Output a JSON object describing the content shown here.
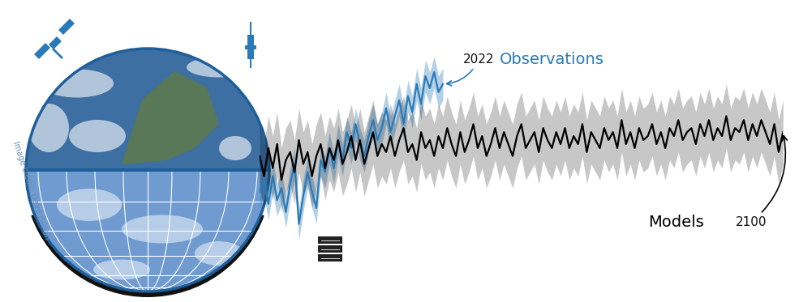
{
  "chart_data": {
    "type": "line",
    "image_credit": "Image credit: Dave Bonan",
    "tick_labels": false,
    "grid": false,
    "xlim": [
      1980,
      2100
    ],
    "ylim": [
      0,
      34
    ],
    "x": [
      1980,
      1981,
      1982,
      1983,
      1984,
      1985,
      1986,
      1987,
      1988,
      1989,
      1990,
      1991,
      1992,
      1993,
      1994,
      1995,
      1996,
      1997,
      1998,
      1999,
      2000,
      2001,
      2002,
      2003,
      2004,
      2005,
      2006,
      2007,
      2008,
      2009,
      2010,
      2011,
      2012,
      2013,
      2014,
      2015,
      2016,
      2017,
      2018,
      2019,
      2020,
      2021,
      2022,
      2023,
      2024,
      2025,
      2026,
      2027,
      2028,
      2029,
      2030,
      2031,
      2032,
      2033,
      2034,
      2035,
      2036,
      2037,
      2038,
      2039,
      2040,
      2041,
      2042,
      2043,
      2044,
      2045,
      2046,
      2047,
      2048,
      2049,
      2050,
      2051,
      2052,
      2053,
      2054,
      2055,
      2056,
      2057,
      2058,
      2059,
      2060,
      2061,
      2062,
      2063,
      2064,
      2065,
      2066,
      2067,
      2068,
      2069,
      2070,
      2071,
      2072,
      2073,
      2074,
      2075,
      2076,
      2077,
      2078,
      2079,
      2080,
      2081,
      2082,
      2083,
      2084,
      2085,
      2086,
      2087,
      2088,
      2089,
      2090,
      2091,
      2092,
      2093,
      2094,
      2095,
      2096,
      2097,
      2098,
      2099,
      2100
    ],
    "series": [
      {
        "name": "Observations",
        "color": "#2a7ab8",
        "end_label": "2022",
        "spread": 2.0,
        "values": [
          13.0,
          14.5,
          11.5,
          15.0,
          12.0,
          13.5,
          10.5,
          14.0,
          16.5,
          9.0,
          12.5,
          15.5,
          13.0,
          11.0,
          17.0,
          15.5,
          18.5,
          16.0,
          19.5,
          17.0,
          20.5,
          18.5,
          21.5,
          19.0,
          17.5,
          20.0,
          22.0,
          19.5,
          21.0,
          23.5,
          20.5,
          22.5,
          24.5,
          21.5,
          25.0,
          23.0,
          26.5,
          24.0,
          27.5,
          26.0,
          28.0,
          25.5,
          26.5,
          null,
          null,
          null,
          null,
          null,
          null,
          null,
          null,
          null,
          null,
          null,
          null,
          null,
          null,
          null,
          null,
          null,
          null,
          null,
          null,
          null,
          null,
          null,
          null,
          null,
          null,
          null,
          null,
          null,
          null,
          null,
          null,
          null,
          null,
          null,
          null,
          null,
          null,
          null,
          null,
          null,
          null,
          null,
          null,
          null,
          null,
          null,
          null,
          null,
          null,
          null,
          null,
          null,
          null,
          null,
          null,
          null,
          null,
          null,
          null,
          null,
          null,
          null,
          null,
          null,
          null,
          null,
          null,
          null,
          null,
          null,
          null,
          null,
          null,
          null,
          null,
          null,
          null
        ]
      },
      {
        "name": "Models",
        "color": "#000000",
        "end_label": "2100",
        "spread": 4.0,
        "values": [
          17.5,
          15.0,
          18.5,
          16.0,
          19.0,
          14.5,
          17.0,
          18.0,
          15.5,
          19.5,
          16.5,
          18.0,
          15.0,
          17.5,
          19.0,
          16.0,
          18.5,
          17.0,
          19.5,
          16.5,
          18.0,
          20.0,
          17.0,
          19.5,
          16.5,
          18.5,
          20.5,
          17.5,
          19.0,
          18.0,
          20.0,
          17.5,
          19.5,
          21.0,
          18.0,
          19.0,
          17.0,
          20.5,
          18.5,
          19.5,
          17.5,
          20.0,
          18.5,
          21.0,
          19.0,
          17.5,
          20.5,
          18.0,
          19.5,
          21.5,
          18.5,
          20.0,
          17.5,
          19.0,
          21.0,
          18.5,
          20.5,
          19.0,
          17.5,
          20.0,
          21.5,
          18.5,
          19.5,
          20.5,
          18.0,
          21.0,
          19.5,
          18.5,
          20.5,
          19.0,
          21.0,
          18.5,
          20.0,
          19.0,
          21.5,
          18.0,
          20.5,
          19.5,
          18.5,
          21.0,
          19.5,
          20.5,
          18.5,
          22.0,
          19.0,
          20.5,
          18.5,
          21.0,
          19.5,
          20.0,
          21.5,
          19.0,
          20.5,
          18.5,
          21.0,
          20.0,
          22.0,
          19.5,
          20.5,
          21.0,
          19.0,
          21.5,
          20.0,
          22.0,
          19.5,
          21.0,
          20.0,
          22.5,
          19.5,
          21.0,
          20.5,
          22.0,
          19.5,
          21.5,
          20.0,
          22.0,
          20.5,
          19.0,
          21.5,
          18.0,
          20.5
        ]
      }
    ]
  }
}
